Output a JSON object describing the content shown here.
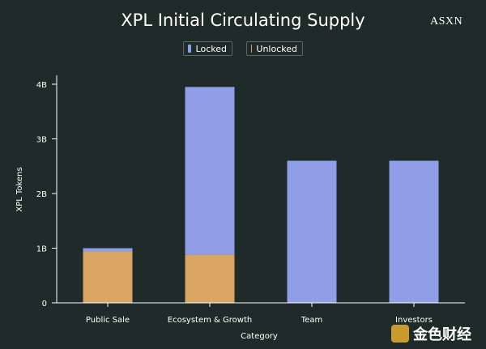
{
  "chart_data": {
    "type": "bar",
    "stacked": true,
    "title": "XPL Initial Circulating Supply",
    "xlabel": "Category",
    "ylabel": "XPL Tokens",
    "categories": [
      "Public Sale",
      "Ecosystem & Growth",
      "Team",
      "Investors"
    ],
    "series": [
      {
        "name": "Unlocked",
        "values": [
          0.94,
          0.88,
          0,
          0
        ],
        "color": "#d9a563"
      },
      {
        "name": "Locked",
        "values": [
          0.06,
          3.07,
          2.6,
          2.6
        ],
        "color": "#8f9ee6"
      }
    ],
    "ylim": [
      0,
      4.05
    ],
    "yticks": [
      {
        "value": 0,
        "label": "0"
      },
      {
        "value": 1,
        "label": "1B"
      },
      {
        "value": 2,
        "label": "2B"
      },
      {
        "value": 3,
        "label": "3B"
      },
      {
        "value": 4,
        "label": "4B"
      }
    ],
    "grid": false,
    "legend_position": "top-center"
  },
  "legend": {
    "locked_label": "Locked",
    "unlocked_label": "Unlocked"
  },
  "brand": "ASXN",
  "watermark": {
    "text": "金色财经",
    "icon": "jinse-logo-icon"
  },
  "colors": {
    "background": "#1e2b28",
    "locked": "#8f9ee6",
    "unlocked": "#d9a563"
  }
}
